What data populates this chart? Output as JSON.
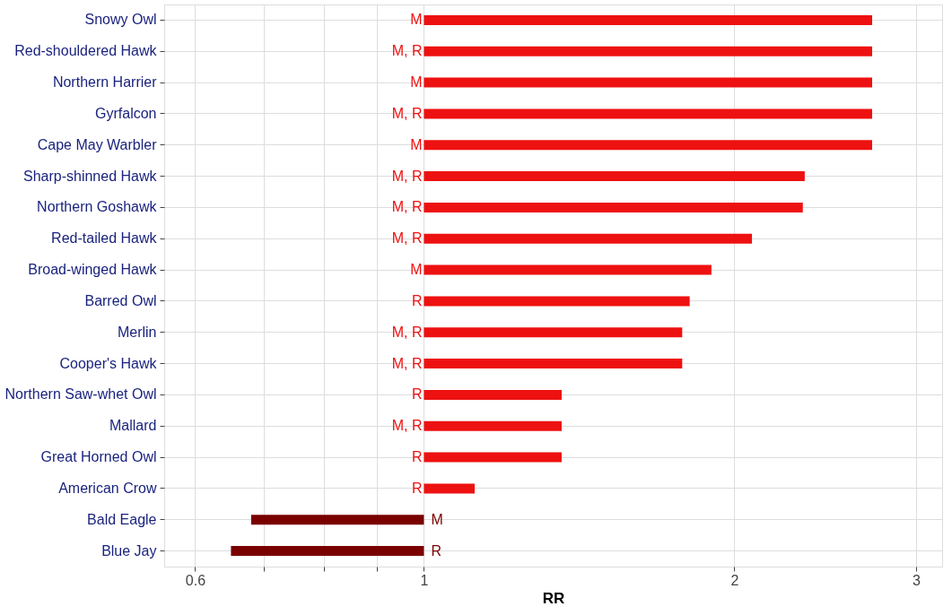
{
  "chart_data": {
    "type": "bar",
    "orientation": "horizontal",
    "xlabel": "RR",
    "log": "x",
    "categories": [
      "Snowy Owl",
      "Red-shouldered Hawk",
      "Northern Harrier",
      "Gyrfalcon",
      "Cape May Warbler",
      "Sharp-shinned Hawk",
      "Northern Goshawk",
      "Red-tailed Hawk",
      "Broad-winged Hawk",
      "Barred Owl",
      "Merlin",
      "Cooper's Hawk",
      "Northern Saw-whet Owl",
      "Mallard",
      "Great Horned Owl",
      "American Crow",
      "Bald Eagle",
      "Blue Jay"
    ],
    "base": [
      1,
      1,
      1,
      1,
      1,
      1,
      1,
      1,
      1,
      1,
      1,
      1,
      1,
      1,
      1,
      1,
      1,
      1
    ],
    "values": [
      1.72,
      1.72,
      1.72,
      1.72,
      1.72,
      1.34,
      1.33,
      1.08,
      0.9,
      0.81,
      0.78,
      0.78,
      0.36,
      0.36,
      0.36,
      0.12,
      -0.32,
      -0.35
    ],
    "colors": [
      "#ee1111",
      "#ee1111",
      "#ee1111",
      "#ee1111",
      "#ee1111",
      "#ee1111",
      "#ee1111",
      "#ee1111",
      "#ee1111",
      "#ee1111",
      "#ee1111",
      "#ee1111",
      "#ee1111",
      "#ee1111",
      "#ee1111",
      "#ee1111",
      "#7a0000",
      "#7a0000"
    ],
    "value_labels": [
      "M",
      "M, R",
      "M",
      "M, R",
      "M",
      "M, R",
      "M, R",
      "M, R",
      "M",
      "R",
      "M, R",
      "M, R",
      "R",
      "M, R",
      "R",
      "R",
      "M",
      "R"
    ],
    "xlim": [
      0.56,
      3.18
    ],
    "xticks": [
      0.6,
      {
        "value": 0.7,
        "label": null
      },
      {
        "value": 0.8,
        "label": null
      },
      {
        "value": 0.9,
        "label": null
      },
      1,
      2,
      3
    ],
    "grid": true
  }
}
